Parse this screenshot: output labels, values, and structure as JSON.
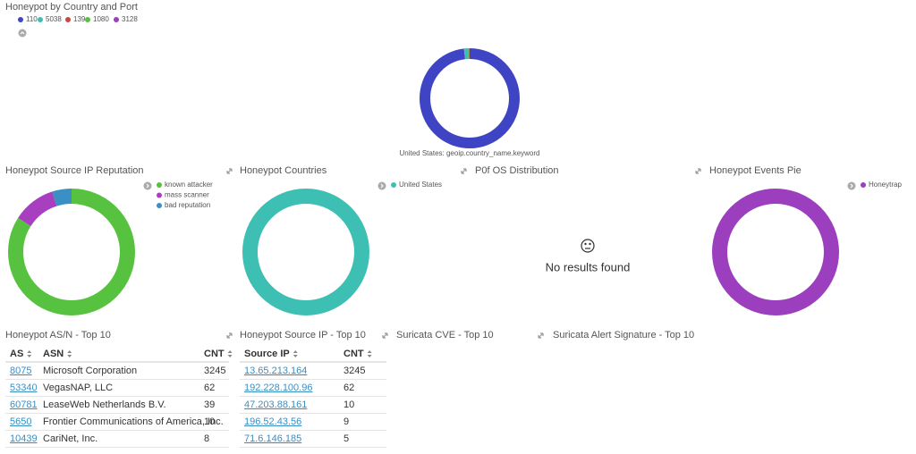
{
  "chart_data": [
    {
      "type": "pie",
      "title": "Honeypot by Country and Port",
      "annotation": "United States: geoip.country_name.keyword",
      "categories": [
        "110",
        "5038",
        "139",
        "1080",
        "3128"
      ],
      "values": [
        98,
        1.5,
        0.2,
        0.2,
        0.1
      ],
      "colors": [
        "#3f44c4",
        "#3ebfb4",
        "#c8473f",
        "#57c240",
        "#9b3fbf"
      ]
    },
    {
      "type": "pie",
      "title": "Honeypot Source IP Reputation",
      "categories": [
        "known attacker",
        "mass scanner",
        "bad reputation"
      ],
      "values": [
        84,
        11,
        5
      ],
      "colors": [
        "#57c240",
        "#a83fc0",
        "#3a8fc4"
      ]
    },
    {
      "type": "pie",
      "title": "Honeypot Countries",
      "categories": [
        "United States"
      ],
      "values": [
        100
      ],
      "colors": [
        "#3ebfb4"
      ]
    },
    {
      "type": "pie",
      "title": "Honeypot Events Pie",
      "categories": [
        "Honeytrap"
      ],
      "values": [
        100
      ],
      "colors": [
        "#9b3fbf"
      ]
    }
  ],
  "empty_panel": {
    "title": "P0f OS Distribution",
    "message": "No results found"
  },
  "tables": [
    {
      "title": "Honeypot AS/N - Top 10",
      "headers": [
        "AS",
        "ASN",
        "CNT"
      ],
      "rows": [
        [
          "8075",
          "Microsoft Corporation",
          3245
        ],
        [
          "53340",
          "VegasNAP, LLC",
          62
        ],
        [
          "60781",
          "LeaseWeb Netherlands B.V.",
          39
        ],
        [
          "5650",
          "Frontier Communications of America, Inc.",
          10
        ],
        [
          "10439",
          "CariNet, Inc.",
          8
        ]
      ]
    },
    {
      "title": "Honeypot Source IP - Top 10",
      "headers": [
        "Source IP",
        "CNT"
      ],
      "rows": [
        [
          "13.65.213.164",
          3245
        ],
        [
          "192.228.100.96",
          62
        ],
        [
          "47.203.88.161",
          10
        ],
        [
          "196.52.43.56",
          9
        ],
        [
          "71.6.146.185",
          5
        ]
      ]
    }
  ],
  "panel_titles": [
    "Suricata CVE - Top 10",
    "Suricata Alert Signature - Top 10"
  ]
}
